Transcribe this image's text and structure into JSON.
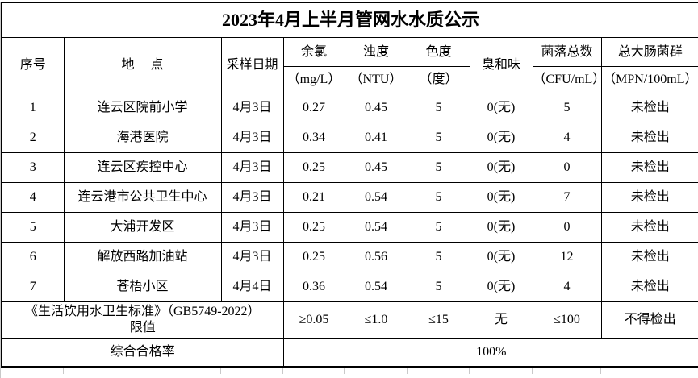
{
  "title": "2023年4月上半月管网水水质公示",
  "header": {
    "seq": "序号",
    "location": "地     点",
    "sample_date": "采样日期",
    "chlorine_label": "余氯",
    "chlorine_unit": "（mg/L）",
    "turbidity_label": "浊度",
    "turbidity_unit": "（NTU）",
    "chroma_label": "色度",
    "chroma_unit": "（度）",
    "odor": "臭和味",
    "colony_label": "菌落总数",
    "colony_unit": "（CFU/mL）",
    "coliform_label": "总大肠菌群",
    "coliform_unit": "（MPN/100mL）"
  },
  "row_keys": [
    "seq",
    "location",
    "date",
    "chlorine",
    "turbidity",
    "chroma",
    "odor",
    "colony",
    "coliform"
  ],
  "rows": [
    {
      "seq": "1",
      "location": "连云区院前小学",
      "date": "4月3日",
      "chlorine": "0.27",
      "turbidity": "0.45",
      "chroma": "5",
      "odor": "0(无)",
      "colony": "5",
      "coliform": "未检出"
    },
    {
      "seq": "2",
      "location": "海港医院",
      "date": "4月3日",
      "chlorine": "0.34",
      "turbidity": "0.41",
      "chroma": "5",
      "odor": "0(无)",
      "colony": "4",
      "coliform": "未检出"
    },
    {
      "seq": "3",
      "location": "连云区疾控中心",
      "date": "4月3日",
      "chlorine": "0.25",
      "turbidity": "0.45",
      "chroma": "5",
      "odor": "0(无)",
      "colony": "0",
      "coliform": "未检出"
    },
    {
      "seq": "4",
      "location": "连云港市公共卫生中心",
      "date": "4月3日",
      "chlorine": "0.21",
      "turbidity": "0.54",
      "chroma": "5",
      "odor": "0(无)",
      "colony": "7",
      "coliform": "未检出"
    },
    {
      "seq": "5",
      "location": "大浦开发区",
      "date": "4月3日",
      "chlorine": "0.25",
      "turbidity": "0.54",
      "chroma": "5",
      "odor": "0(无)",
      "colony": "0",
      "coliform": "未检出"
    },
    {
      "seq": "6",
      "location": "解放西路加油站",
      "date": "4月3日",
      "chlorine": "0.25",
      "turbidity": "0.56",
      "chroma": "5",
      "odor": "0(无)",
      "colony": "12",
      "coliform": "未检出"
    },
    {
      "seq": "7",
      "location": "苍梧小区",
      "date": "4月4日",
      "chlorine": "0.36",
      "turbidity": "0.54",
      "chroma": "5",
      "odor": "0(无)",
      "colony": "4",
      "coliform": "未检出"
    }
  ],
  "standard_row": {
    "label": "《生活饮用水卫生标准》（GB5749-2022）\n限值",
    "chlorine": "≥0.05",
    "turbidity": "≤1.0",
    "chroma": "≤15",
    "odor": "无",
    "colony": "≤100",
    "coliform": "不得检出"
  },
  "rate_row": {
    "label": "综合合格率",
    "value": "100%"
  },
  "colors": {
    "border": "#000000",
    "text": "#000000",
    "background": "#ffffff",
    "gridline": "#c9c9c9"
  }
}
